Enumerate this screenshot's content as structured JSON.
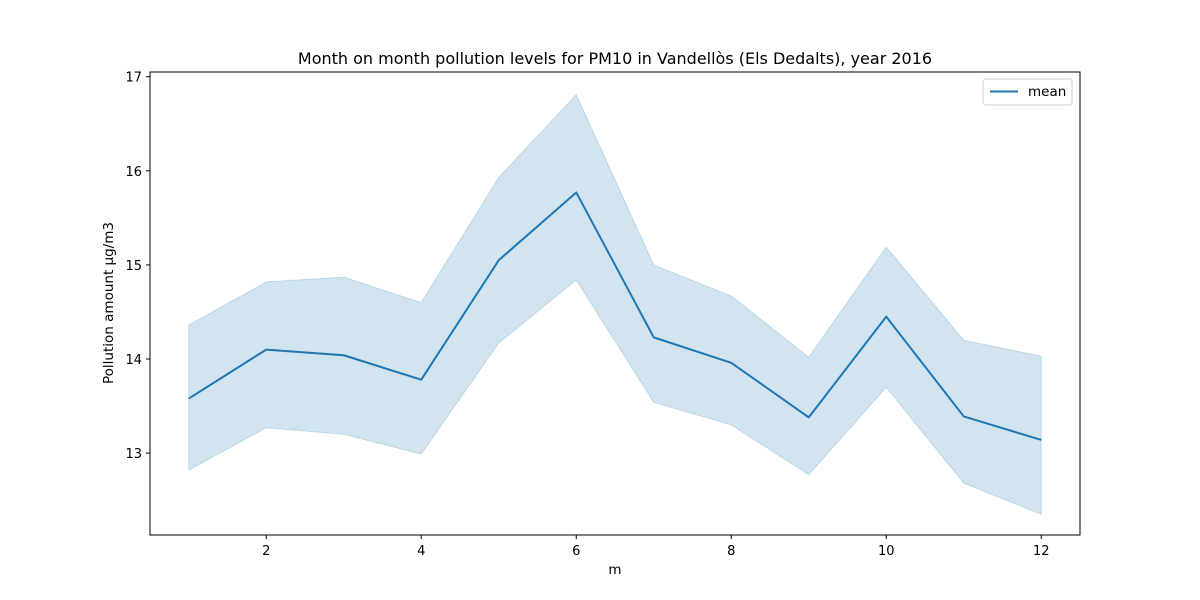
{
  "chart_data": {
    "type": "line",
    "title": "Month on month pollution levels for PM10 in Vandellòs (Els Dedalts), year 2016",
    "xlabel": "m",
    "ylabel": "Pollution amount μg/m3",
    "xlim": [
      0.5,
      12.5
    ],
    "ylim": [
      12.13,
      17.05
    ],
    "xticks": [
      2,
      4,
      6,
      8,
      10,
      12
    ],
    "yticks": [
      13,
      14,
      15,
      16,
      17
    ],
    "grid": false,
    "legend_position": "top-right",
    "series": [
      {
        "name": "mean",
        "color": "#1f77b4",
        "x": [
          1,
          2,
          3,
          4,
          5,
          6,
          7,
          8,
          9,
          10,
          11,
          12
        ],
        "values": [
          13.58,
          14.1,
          14.04,
          13.78,
          15.05,
          15.77,
          14.23,
          13.96,
          13.38,
          14.45,
          13.39,
          13.14
        ],
        "band_lower": [
          12.82,
          13.27,
          13.2,
          12.99,
          14.17,
          14.84,
          13.54,
          13.3,
          12.77,
          13.7,
          12.68,
          12.35
        ],
        "band_upper": [
          14.36,
          14.82,
          14.87,
          14.6,
          15.93,
          16.81,
          15.0,
          14.67,
          14.02,
          15.19,
          14.2,
          14.03
        ],
        "band_color": "#1f77b4"
      }
    ]
  }
}
